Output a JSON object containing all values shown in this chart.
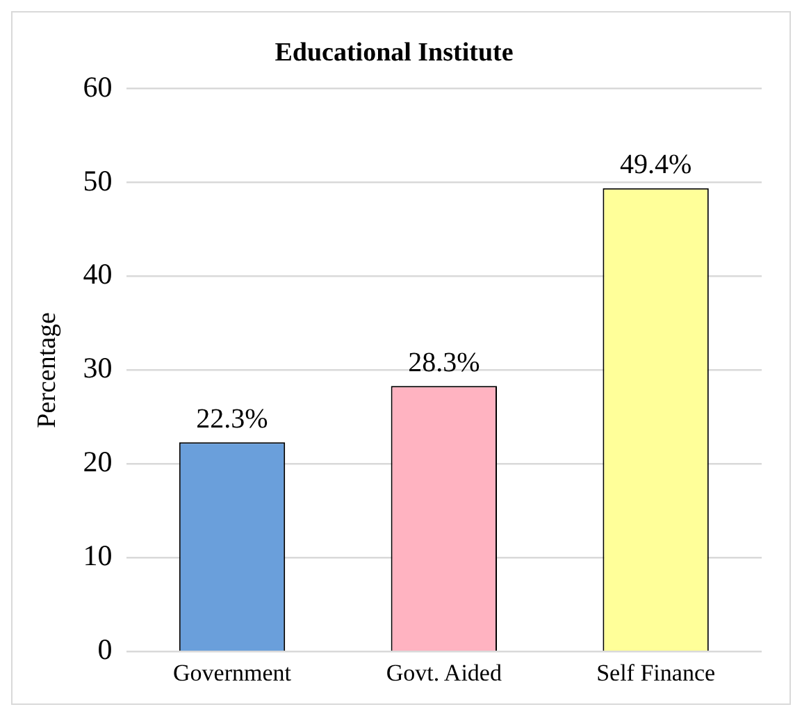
{
  "chart_data": {
    "type": "bar",
    "title": "Educational Institute",
    "ylabel": "Percentage",
    "categories": [
      "Government",
      "Govt. Aided",
      "Self Finance"
    ],
    "values": [
      22.3,
      28.3,
      49.4
    ],
    "colors": [
      "#6a9fdb",
      "#ffb3c1",
      "#ffff99"
    ],
    "value_labels": [
      "22.3%",
      "28.3%",
      "49.4%"
    ],
    "ylim": [
      0,
      60
    ],
    "yticks": [
      0,
      10,
      20,
      30,
      40,
      50,
      60
    ],
    "grid": "y",
    "legend": false
  }
}
